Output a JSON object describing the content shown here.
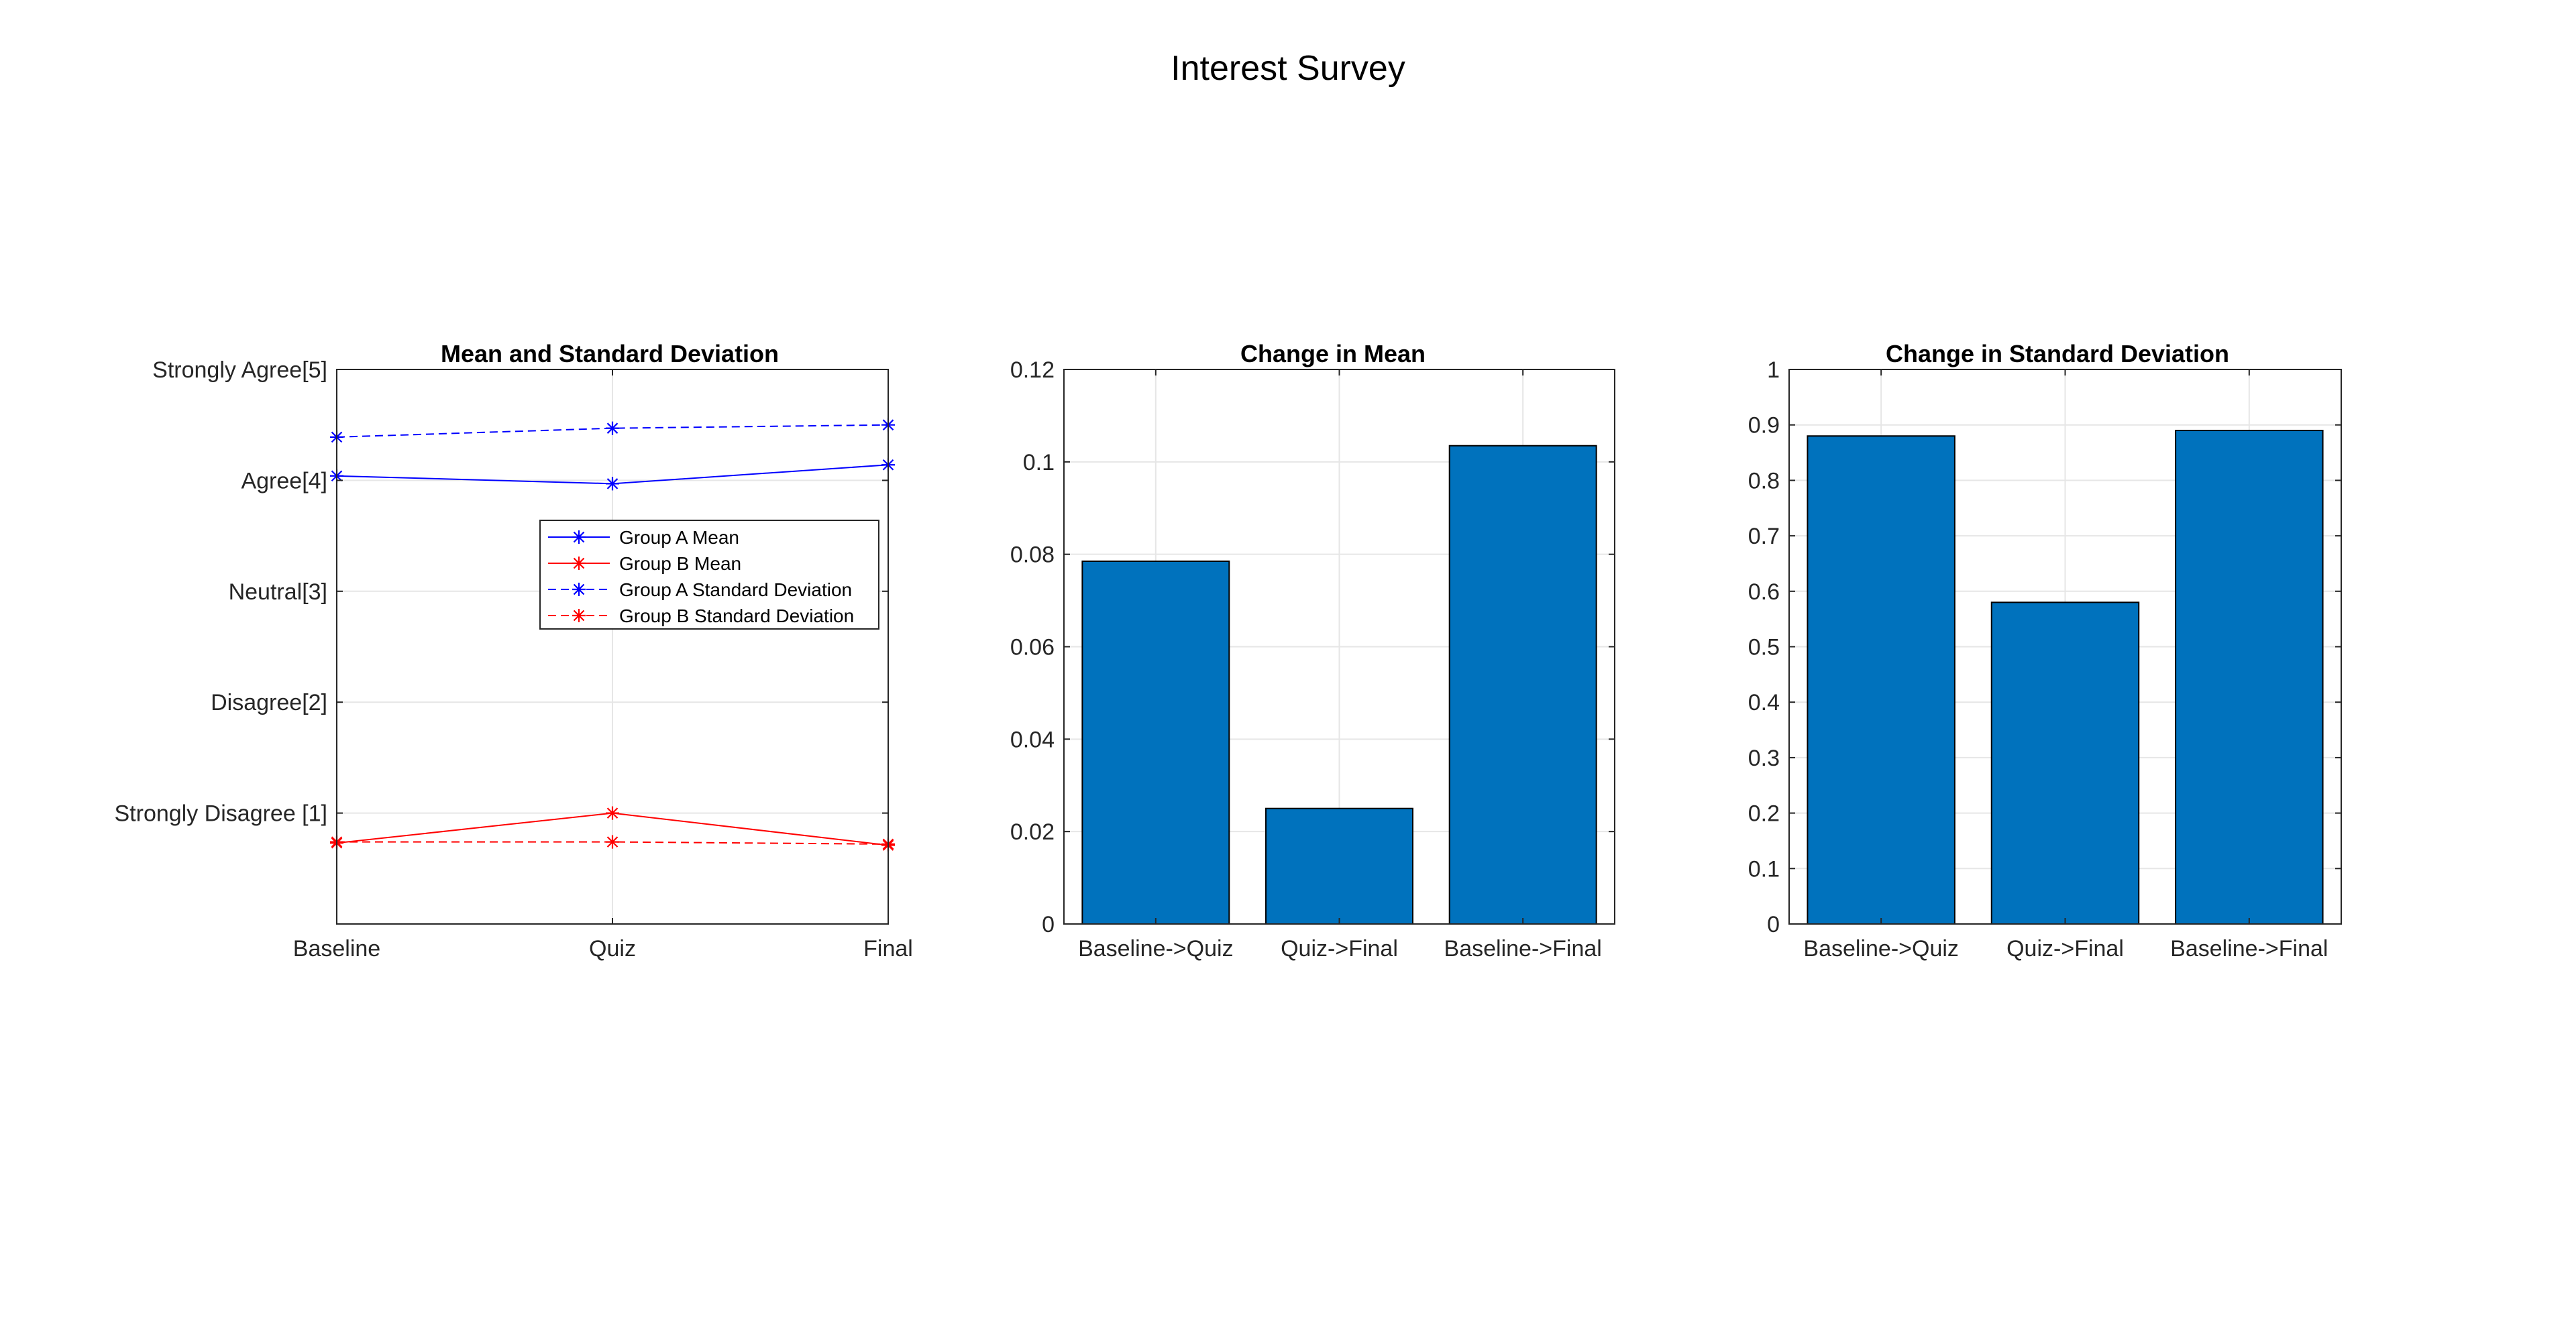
{
  "figure": {
    "title": "Interest Survey"
  },
  "chart_data": [
    {
      "type": "line",
      "title": "Mean and Standard Deviation",
      "xlabel": "",
      "ylabel": "",
      "categories": [
        "Baseline",
        "Quiz",
        "Final"
      ],
      "ylim": [
        0,
        5
      ],
      "yticks": [
        1,
        2,
        3,
        4,
        5
      ],
      "ytick_labels": [
        "Strongly Disagree [1]",
        "Disagree[2]",
        "Neutral[3]",
        "Agree[4]",
        "Strongly Agree[5]"
      ],
      "grid": true,
      "legend": "inside-right",
      "series": [
        {
          "name": "Group A Mean",
          "values": [
            4.04,
            3.97,
            4.14
          ],
          "color": "#0000ff",
          "style": "solid",
          "marker": "asterisk"
        },
        {
          "name": "Group B Mean",
          "values": [
            0.73,
            1.0,
            0.71
          ],
          "color": "#ff0000",
          "style": "solid",
          "marker": "asterisk"
        },
        {
          "name": "Group A Standard Deviation",
          "values": [
            4.39,
            4.47,
            4.5
          ],
          "color": "#0000ff",
          "style": "dashed",
          "marker": "asterisk"
        },
        {
          "name": "Group B Standard Deviation",
          "values": [
            0.74,
            0.74,
            0.72
          ],
          "color": "#ff0000",
          "style": "dashed",
          "marker": "asterisk"
        }
      ]
    },
    {
      "type": "bar",
      "title": "Change in Mean",
      "xlabel": "",
      "ylabel": "",
      "categories": [
        "Baseline->Quiz",
        "Quiz->Final",
        "Baseline->Final"
      ],
      "values": [
        0.0785,
        0.025,
        0.1035
      ],
      "ylim": [
        0,
        0.12
      ],
      "yticks": [
        0,
        0.02,
        0.04,
        0.06,
        0.08,
        0.1,
        0.12
      ],
      "ytick_labels": [
        "0",
        "0.02",
        "0.04",
        "0.06",
        "0.08",
        "0.1",
        "0.12"
      ],
      "grid": true,
      "bar_color": "#0072bd"
    },
    {
      "type": "bar",
      "title": "Change in Standard Deviation",
      "xlabel": "",
      "ylabel": "",
      "categories": [
        "Baseline->Quiz",
        "Quiz->Final",
        "Baseline->Final"
      ],
      "values": [
        0.88,
        0.58,
        0.89
      ],
      "ylim": [
        0,
        1
      ],
      "yticks": [
        0,
        0.1,
        0.2,
        0.3,
        0.4,
        0.5,
        0.6,
        0.7,
        0.8,
        0.9,
        1
      ],
      "ytick_labels": [
        "0",
        "0.1",
        "0.2",
        "0.3",
        "0.4",
        "0.5",
        "0.6",
        "0.7",
        "0.8",
        "0.9",
        "1"
      ],
      "grid": true,
      "bar_color": "#0072bd"
    }
  ]
}
